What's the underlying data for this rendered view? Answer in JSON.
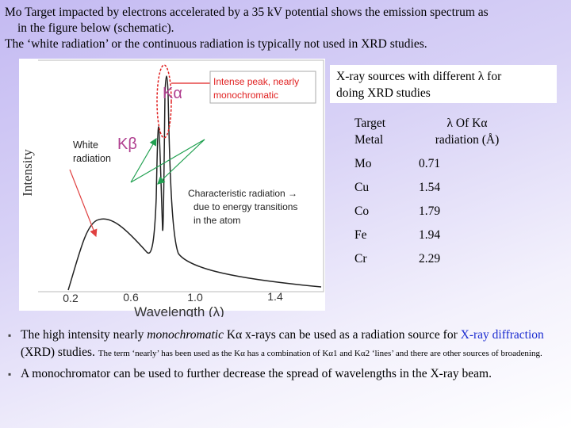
{
  "intro": [
    "Mo Target impacted by electrons accelerated by a 35 kV potential shows the emission spectrum as",
    "in the figure below (schematic).",
    "The ‘white radiation’ or the continuous radiation is typically not used in XRD studies."
  ],
  "figure": {
    "y_label": "Intensity",
    "x_label": "Wavelength (λ)",
    "x_ticks": [
      "0.2",
      "0.6",
      "1.0",
      "1.4"
    ],
    "ka": "Kα",
    "kb": "Kβ",
    "white": [
      "White",
      "radiation"
    ],
    "peak_note": [
      "Intense peak, nearly",
      "monochromatic"
    ],
    "char_note": [
      "Characteristic radiation →",
      "due to energy transitions",
      "in the atom"
    ]
  },
  "callout": [
    "X-ray sources with different λ for",
    "doing XRD studies"
  ],
  "table": {
    "header": [
      [
        "Target",
        "Metal"
      ],
      [
        "λ Of Kα",
        "radiation (Å)"
      ]
    ],
    "rows": [
      [
        "Mo",
        "0.71"
      ],
      [
        "Cu",
        "1.54"
      ],
      [
        "Co",
        "1.79"
      ],
      [
        "Fe",
        "1.94"
      ],
      [
        "Cr",
        "2.29"
      ]
    ]
  },
  "bullets": [
    {
      "parts": [
        "The high intensity nearly ",
        "monochromatic",
        " Kα x-rays can be used as a radiation source for ",
        "X-ray diffraction",
        " (XRD) studies. "
      ],
      "small": "The term ‘nearly’ has been used as the Kα has a combination of Kα1 and Kα2 ‘lines’ and there are other sources of broadening."
    },
    {
      "parts": [
        "A monochromator can be used to further decrease the spread of wavelengths in the X-ray beam."
      ]
    }
  ]
}
